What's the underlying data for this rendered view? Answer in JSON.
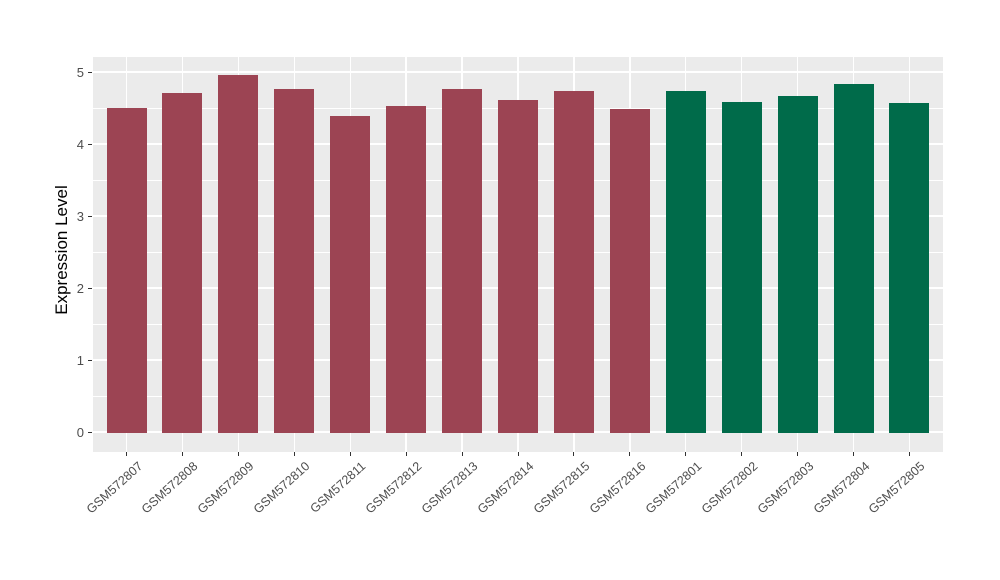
{
  "chart_data": {
    "type": "bar",
    "title": "",
    "xlabel": "",
    "ylabel": "Expression Level",
    "ylim": [
      0,
      5.2
    ],
    "y_ticks": [
      0,
      1,
      2,
      3,
      4,
      5
    ],
    "y_minor_ticks": [
      0.5,
      1.5,
      2.5,
      3.5,
      4.5
    ],
    "grid": "major+minor, white on gray panel",
    "legend": "none",
    "panel_background": "#EBEBEB",
    "gridline_color": "#FFFFFF",
    "axis_text_color": "#4D4D4D",
    "categories": [
      "GSM572807",
      "GSM572808",
      "GSM572809",
      "GSM572810",
      "GSM572811",
      "GSM572812",
      "GSM572813",
      "GSM572814",
      "GSM572815",
      "GSM572816",
      "GSM572801",
      "GSM572802",
      "GSM572803",
      "GSM572804",
      "GSM572805"
    ],
    "values": [
      4.51,
      4.72,
      4.97,
      4.78,
      4.4,
      4.54,
      4.77,
      4.62,
      4.75,
      4.5,
      4.75,
      4.59,
      4.68,
      4.85,
      4.58
    ],
    "colors": [
      "#9C4453",
      "#9C4453",
      "#9C4453",
      "#9C4453",
      "#9C4453",
      "#9C4453",
      "#9C4453",
      "#9C4453",
      "#9C4453",
      "#9C4453",
      "#006B4A",
      "#006B4A",
      "#006B4A",
      "#006B4A",
      "#006B4A"
    ],
    "groups": [
      {
        "name": "group-maroon",
        "color": "#9C4453",
        "samples": [
          "GSM572807",
          "GSM572808",
          "GSM572809",
          "GSM572810",
          "GSM572811",
          "GSM572812",
          "GSM572813",
          "GSM572814",
          "GSM572815",
          "GSM572816"
        ]
      },
      {
        "name": "group-green",
        "color": "#006B4A",
        "samples": [
          "GSM572801",
          "GSM572802",
          "GSM572803",
          "GSM572804",
          "GSM572805"
        ]
      }
    ]
  }
}
